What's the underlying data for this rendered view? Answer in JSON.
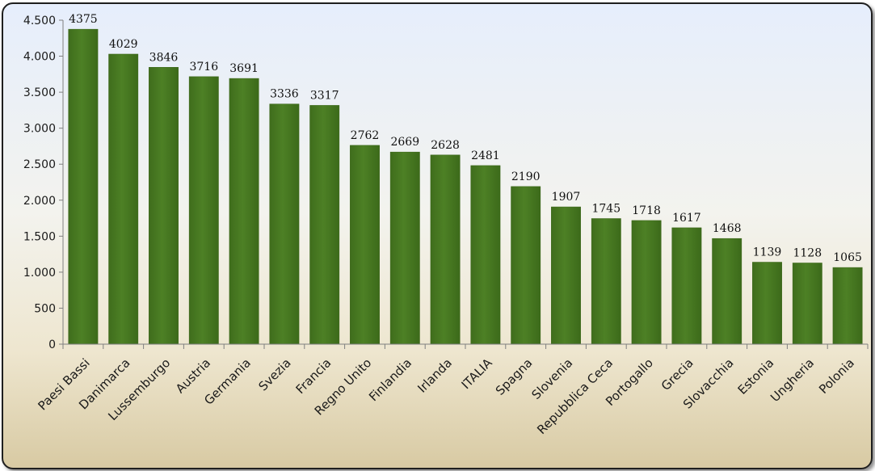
{
  "chart_data": {
    "type": "bar",
    "title": "",
    "xlabel": "",
    "ylabel": "",
    "categories": [
      "Paesi Bassi",
      "Danimarca",
      "Lussemburgo",
      "Austria",
      "Germania",
      "Svezia",
      "Francia",
      "Regno Unito",
      "Finlandia",
      "Irlanda",
      "ITALIA",
      "Spagna",
      "Slovenia",
      "Repubblica Ceca",
      "Portogallo",
      "Grecia",
      "Slovacchia",
      "Estonia",
      "Ungheria",
      "Polonia"
    ],
    "values": [
      4375,
      4029,
      3846,
      3716,
      3691,
      3336,
      3317,
      2762,
      2669,
      2628,
      2481,
      2190,
      1907,
      1745,
      1718,
      1617,
      1468,
      1139,
      1128,
      1065
    ],
    "data_labels": [
      "4375",
      "4029",
      "3846",
      "3716",
      "3691",
      "3336",
      "3317",
      "2762",
      "2669",
      "2628",
      "2481",
      "2190",
      "1907",
      "1745",
      "1718",
      "1617",
      "1468",
      "1139",
      "1128",
      "1065"
    ],
    "ylim": [
      0,
      4500
    ],
    "y_ticks": [
      0,
      500,
      1000,
      1500,
      2000,
      2500,
      3000,
      3500,
      4000,
      4500
    ],
    "y_tick_labels": [
      "0",
      "500",
      "1.000",
      "1.500",
      "2.000",
      "2.500",
      "3.000",
      "3.500",
      "4.000",
      "4.500"
    ],
    "bar_color": "#4a7c23",
    "grid": false,
    "legend": "none"
  }
}
